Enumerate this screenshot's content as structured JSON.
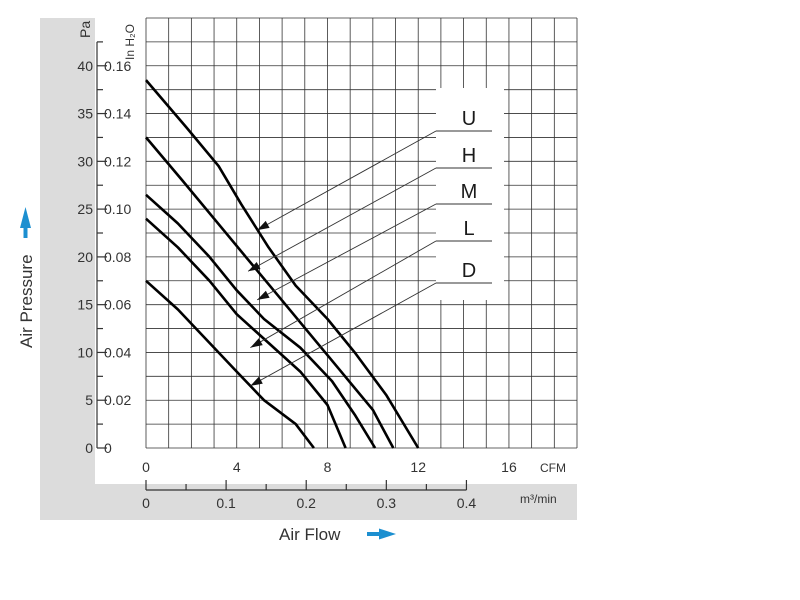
{
  "chart_data": {
    "type": "line",
    "xlabel": "Air Flow",
    "ylabel": "Air Pressure",
    "x_units": [
      "CFM",
      "m³/min"
    ],
    "y_units": [
      "Pa",
      "In H₂O"
    ],
    "xlim": [
      0,
      19
    ],
    "ylim": [
      0,
      45
    ],
    "x_ticks_cfm": [
      "0",
      "4",
      "8",
      "12",
      "16"
    ],
    "x_ticks_m3min": [
      "0",
      "0.1",
      "0.2",
      "0.3",
      "0.4"
    ],
    "y_ticks_pa": [
      "0",
      "5",
      "10",
      "15",
      "20",
      "25",
      "30",
      "35",
      "40"
    ],
    "y_ticks_inh2o": [
      "0",
      "0.02",
      "0.04",
      "0.06",
      "0.08",
      "0.10",
      "0.12",
      "0.14",
      "0.16"
    ],
    "grid": true,
    "legend_position": "top-right",
    "arrow_color": "#1c8fd0",
    "line_color": "#000000",
    "series": [
      {
        "name": "U",
        "points": [
          [
            0,
            38.5
          ],
          [
            1.8,
            33.5
          ],
          [
            3.2,
            29.5
          ],
          [
            4.2,
            25.5
          ],
          [
            5.4,
            21.0
          ],
          [
            6.6,
            17.0
          ],
          [
            8.0,
            13.5
          ],
          [
            9.2,
            10.0
          ],
          [
            10.6,
            5.5
          ],
          [
            12.0,
            0
          ]
        ]
      },
      {
        "name": "H",
        "points": [
          [
            0,
            32.5
          ],
          [
            1.6,
            28.0
          ],
          [
            3.0,
            24.0
          ],
          [
            4.4,
            20.0
          ],
          [
            5.8,
            16.0
          ],
          [
            7.2,
            12.0
          ],
          [
            8.6,
            8.0
          ],
          [
            10.0,
            4.0
          ],
          [
            10.9,
            0
          ]
        ]
      },
      {
        "name": "M",
        "points": [
          [
            0,
            26.5
          ],
          [
            1.4,
            23.5
          ],
          [
            2.8,
            20.0
          ],
          [
            4.0,
            16.5
          ],
          [
            5.2,
            13.5
          ],
          [
            6.8,
            10.5
          ],
          [
            8.2,
            7.0
          ],
          [
            9.2,
            3.5
          ],
          [
            10.1,
            0
          ]
        ]
      },
      {
        "name": "L",
        "points": [
          [
            0,
            24.0
          ],
          [
            1.4,
            21.0
          ],
          [
            2.8,
            17.5
          ],
          [
            4.0,
            14.0
          ],
          [
            5.4,
            11.0
          ],
          [
            6.8,
            8.0
          ],
          [
            8.0,
            4.5
          ],
          [
            8.8,
            0
          ]
        ]
      },
      {
        "name": "D",
        "points": [
          [
            0,
            17.5
          ],
          [
            1.4,
            14.5
          ],
          [
            2.8,
            11.0
          ],
          [
            4.0,
            8.0
          ],
          [
            5.2,
            5.0
          ],
          [
            6.6,
            2.5
          ],
          [
            7.4,
            0
          ]
        ]
      }
    ],
    "annotations": [
      {
        "series": "U",
        "arrow_to": [
          4.9,
          22.8
        ]
      },
      {
        "series": "H",
        "arrow_to": [
          4.5,
          18.5
        ]
      },
      {
        "series": "M",
        "arrow_to": [
          4.9,
          15.5
        ]
      },
      {
        "series": "L",
        "arrow_to": [
          4.6,
          10.5
        ]
      },
      {
        "series": "D",
        "arrow_to": [
          4.6,
          6.5
        ]
      }
    ]
  }
}
